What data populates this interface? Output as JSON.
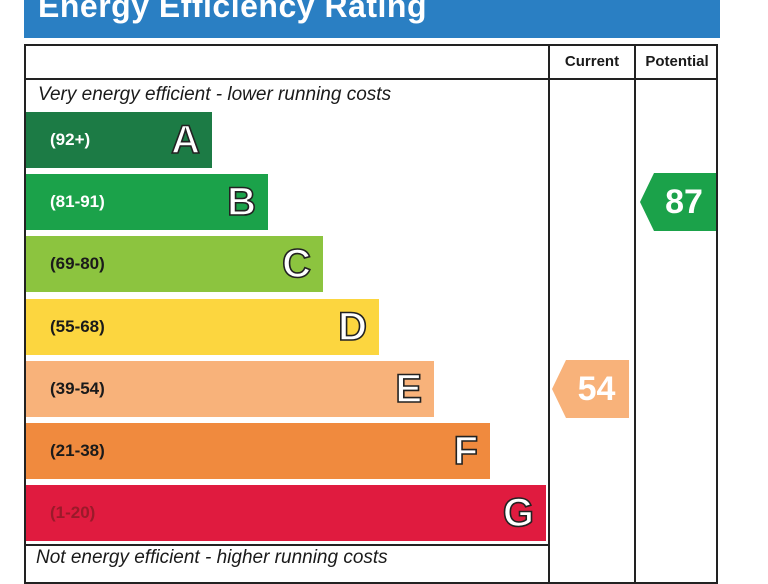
{
  "title": "Energy Efficiency Rating",
  "headers": {
    "current": "Current",
    "potential": "Potential"
  },
  "top_note": "Very energy efficient - lower running costs",
  "bottom_note": "Not energy efficient - higher running costs",
  "chart_data": {
    "type": "bar",
    "title": "Energy Efficiency Rating",
    "bands": [
      {
        "letter": "A",
        "range": "(92+)",
        "color": "#1c7b45",
        "text_color": "#ffffff"
      },
      {
        "letter": "B",
        "range": "(81-91)",
        "color": "#1ba24a",
        "text_color": "#ffffff"
      },
      {
        "letter": "C",
        "range": "(69-80)",
        "color": "#8cc43f",
        "text_color": "#1a1a1a"
      },
      {
        "letter": "D",
        "range": "(55-68)",
        "color": "#fcd63f",
        "text_color": "#1a1a1a"
      },
      {
        "letter": "E",
        "range": "(39-54)",
        "color": "#f8b27a",
        "text_color": "#1a1a1a"
      },
      {
        "letter": "F",
        "range": "(21-38)",
        "color": "#f08a3e",
        "text_color": "#1a1a1a"
      },
      {
        "letter": "G",
        "range": "(1-20)",
        "color": "#e01b3f",
        "text_color": "#9a1a2a"
      }
    ],
    "current": {
      "value": 54,
      "band": "E",
      "color": "#f8b27a"
    },
    "potential": {
      "value": 87,
      "band": "B",
      "color": "#1ba24a"
    }
  }
}
